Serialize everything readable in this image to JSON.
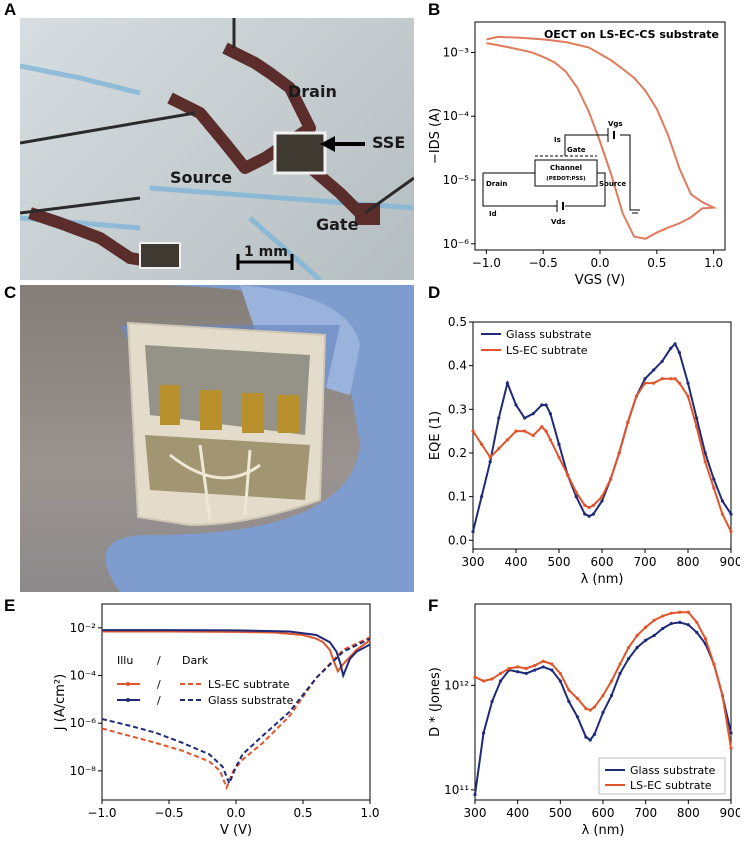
{
  "panels": {
    "a": "A",
    "b": "B",
    "c": "C",
    "d": "D",
    "e": "E",
    "f": "F"
  },
  "photo_a": {
    "drain": "Drain",
    "source": "Source",
    "gate": "Gate",
    "sse": "SSE",
    "scale": "1 mm"
  },
  "colors": {
    "orange": "#e0552b",
    "navy": "#1f2a78",
    "salmon": "#e07a5c"
  },
  "chart_data": [
    {
      "id": "B",
      "type": "line",
      "yscale": "log",
      "title": "OECT on LS-EC-CS substrate",
      "xlabel": "VGS (V)",
      "ylabel": "−IDS (A)",
      "xlim": [
        -1.1,
        1.1
      ],
      "ylim": [
        8e-07,
        0.003
      ],
      "xticks": [
        "−1.0",
        "−0.5",
        "0.0",
        "0.5",
        "1.0"
      ],
      "yticks": [
        "10⁻⁶",
        "10⁻⁵",
        "10⁻⁴",
        "10⁻³"
      ],
      "x": [
        -1.0,
        -0.9,
        -0.7,
        -0.5,
        -0.3,
        -0.1,
        0.0,
        0.1,
        0.2,
        0.3,
        0.4,
        0.5,
        0.6,
        0.7,
        0.8,
        0.9,
        1.0,
        0.9,
        0.8,
        0.7,
        0.6,
        0.5,
        0.4,
        0.3,
        0.2,
        0.1,
        0.0,
        -0.1,
        -0.2,
        -0.3,
        -0.4,
        -0.5,
        -0.6,
        -0.7,
        -0.8,
        -0.9,
        -1.0
      ],
      "y": [
        0.0016,
        0.00175,
        0.0017,
        0.0016,
        0.00145,
        0.0012,
        0.00095,
        0.00075,
        0.00055,
        0.0004,
        0.00025,
        0.00013,
        5e-05,
        1.5e-05,
        6e-06,
        4.5e-06,
        3.7e-06,
        3.6e-06,
        2.6e-06,
        2.1e-06,
        1.8e-06,
        1.5e-06,
        1.2e-06,
        1.3e-06,
        3e-06,
        1.2e-05,
        4e-05,
        0.00012,
        0.00028,
        0.0005,
        0.0007,
        0.00085,
        0.001,
        0.0011,
        0.0012,
        0.0013,
        0.0014
      ],
      "inset": {
        "is": "Is",
        "vgs": "Vgs",
        "gate": "Gate",
        "channel": "Channel",
        "pedot": "(PEDOT:PSS)",
        "drain": "Drain",
        "source": "Source",
        "id": "Id",
        "vds": "Vds"
      }
    },
    {
      "id": "D",
      "type": "line",
      "xlabel": "λ (nm)",
      "ylabel": "EQE (1)",
      "xlim": [
        300,
        900
      ],
      "ylim": [
        -0.02,
        0.5
      ],
      "xticks": [
        300,
        400,
        500,
        600,
        700,
        800,
        900
      ],
      "yticks": [
        0.0,
        0.1,
        0.2,
        0.3,
        0.4,
        0.5
      ],
      "x": [
        300,
        320,
        340,
        360,
        380,
        400,
        420,
        440,
        460,
        470,
        480,
        500,
        520,
        540,
        560,
        570,
        580,
        600,
        620,
        640,
        660,
        680,
        700,
        720,
        740,
        760,
        770,
        780,
        800,
        820,
        840,
        860,
        880,
        900
      ],
      "series": [
        {
          "name": "Glass substrate",
          "values": [
            0.02,
            0.1,
            0.18,
            0.28,
            0.36,
            0.31,
            0.28,
            0.29,
            0.31,
            0.31,
            0.29,
            0.22,
            0.15,
            0.1,
            0.06,
            0.055,
            0.06,
            0.09,
            0.14,
            0.2,
            0.27,
            0.33,
            0.37,
            0.39,
            0.41,
            0.44,
            0.45,
            0.43,
            0.36,
            0.28,
            0.2,
            0.14,
            0.09,
            0.06
          ]
        },
        {
          "name": "LS-EC subtrate",
          "values": [
            0.25,
            0.22,
            0.19,
            0.21,
            0.23,
            0.25,
            0.25,
            0.24,
            0.26,
            0.25,
            0.23,
            0.19,
            0.15,
            0.11,
            0.08,
            0.075,
            0.08,
            0.1,
            0.14,
            0.2,
            0.27,
            0.33,
            0.36,
            0.36,
            0.37,
            0.37,
            0.37,
            0.36,
            0.33,
            0.26,
            0.18,
            0.12,
            0.06,
            0.02
          ]
        }
      ]
    },
    {
      "id": "E",
      "type": "line",
      "yscale": "log",
      "xlabel": "V (V)",
      "ylabel": "J (A/cm²)",
      "xlim": [
        -1.0,
        1.0
      ],
      "ylim": [
        6e-10,
        0.1
      ],
      "xticks": [
        "−1.0",
        "−0.5",
        "0.0",
        "0.5",
        "1.0"
      ],
      "yticks": [
        "10⁻⁸",
        "10⁻⁶",
        "10⁻⁴",
        "10⁻²"
      ],
      "legend": {
        "illu": "Illu",
        "slash": "/",
        "dark": "Dark"
      },
      "series": [
        {
          "name": "LS-EC subtrate",
          "kind": "illu",
          "x": [
            -1.0,
            -0.5,
            0.0,
            0.3,
            0.5,
            0.6,
            0.65,
            0.7,
            0.73,
            0.76,
            0.8,
            0.9,
            1.0
          ],
          "y": [
            0.007,
            0.007,
            0.0068,
            0.0063,
            0.005,
            0.0035,
            0.0025,
            0.0012,
            0.0004,
            0.00015,
            0.0003,
            0.0012,
            0.003
          ]
        },
        {
          "name": "Glass substrate",
          "kind": "illu",
          "x": [
            -1.0,
            -0.5,
            0.0,
            0.4,
            0.6,
            0.7,
            0.75,
            0.78,
            0.8,
            0.85,
            0.9,
            1.0
          ],
          "y": [
            0.008,
            0.008,
            0.0078,
            0.007,
            0.005,
            0.0025,
            0.001,
            0.0003,
            0.0001,
            0.0005,
            0.001,
            0.002
          ]
        },
        {
          "name": "LS-EC subtrate",
          "kind": "dark",
          "x": [
            -1.0,
            -0.8,
            -0.6,
            -0.4,
            -0.2,
            -0.12,
            -0.07,
            -0.02,
            0.05,
            0.2,
            0.4,
            0.6,
            0.8,
            1.0
          ],
          "y": [
            6e-07,
            3e-07,
            1.5e-07,
            7e-08,
            2.5e-08,
            1e-08,
            2e-09,
            1e-08,
            3e-08,
            1.5e-07,
            2e-06,
            8e-05,
            0.0012,
            0.004
          ]
        },
        {
          "name": "Glass substrate",
          "kind": "dark",
          "x": [
            -1.0,
            -0.8,
            -0.6,
            -0.4,
            -0.2,
            -0.1,
            -0.05,
            0.0,
            0.05,
            0.2,
            0.4,
            0.6,
            0.8,
            1.0
          ],
          "y": [
            1.5e-06,
            8e-07,
            4e-07,
            1.5e-07,
            5e-08,
            1.5e-08,
            3e-09,
            1.5e-08,
            5e-08,
            3e-07,
            3e-06,
            8e-05,
            0.001,
            0.0035
          ]
        }
      ]
    },
    {
      "id": "F",
      "type": "line",
      "yscale": "log",
      "xlabel": "λ (nm)",
      "ylabel": "D * (Jones)",
      "xlim": [
        300,
        900
      ],
      "ylim": [
        80000000000.0,
        6000000000000.0
      ],
      "xticks": [
        300,
        400,
        500,
        600,
        700,
        800,
        900
      ],
      "yticks": [
        "10¹¹",
        "10¹²"
      ],
      "x": [
        300,
        320,
        340,
        360,
        380,
        400,
        420,
        440,
        460,
        480,
        500,
        520,
        540,
        560,
        570,
        580,
        600,
        620,
        640,
        660,
        680,
        700,
        720,
        740,
        760,
        780,
        800,
        820,
        840,
        860,
        880,
        900
      ],
      "series": [
        {
          "name": "Glass substrate",
          "values": [
            90000000000.0,
            350000000000.0,
            700000000000.0,
            1100000000000.0,
            1400000000000.0,
            1350000000000.0,
            1300000000000.0,
            1400000000000.0,
            1500000000000.0,
            1400000000000.0,
            1100000000000.0,
            700000000000.0,
            500000000000.0,
            320000000000.0,
            300000000000.0,
            340000000000.0,
            550000000000.0,
            800000000000.0,
            1300000000000.0,
            1800000000000.0,
            2300000000000.0,
            2700000000000.0,
            3000000000000.0,
            3500000000000.0,
            3900000000000.0,
            4000000000000.0,
            3800000000000.0,
            3200000000000.0,
            2500000000000.0,
            1600000000000.0,
            800000000000.0,
            350000000000.0
          ]
        },
        {
          "name": "LS-EC subtrate",
          "values": [
            1200000000000.0,
            1100000000000.0,
            1150000000000.0,
            1300000000000.0,
            1450000000000.0,
            1500000000000.0,
            1450000000000.0,
            1550000000000.0,
            1700000000000.0,
            1600000000000.0,
            1300000000000.0,
            900000000000.0,
            750000000000.0,
            600000000000.0,
            580000000000.0,
            620000000000.0,
            800000000000.0,
            1100000000000.0,
            1600000000000.0,
            2300000000000.0,
            3000000000000.0,
            3600000000000.0,
            4200000000000.0,
            4600000000000.0,
            4900000000000.0,
            5000000000000.0,
            5000000000000.0,
            4000000000000.0,
            2800000000000.0,
            1600000000000.0,
            800000000000.0,
            250000000000.0
          ]
        }
      ]
    }
  ]
}
